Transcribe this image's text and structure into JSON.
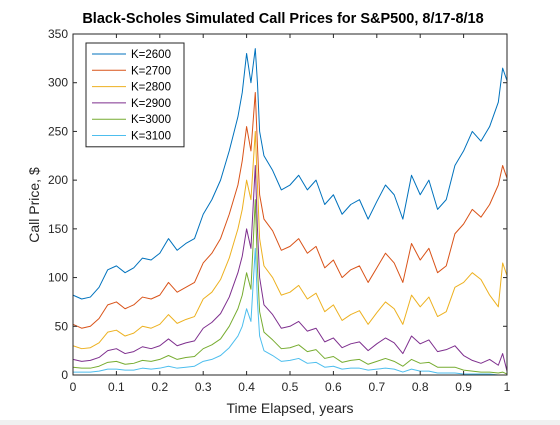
{
  "chart_data": {
    "type": "line",
    "title": "Black-Scholes Simulated Call Prices for S&P500, 8/17-8/18",
    "xlabel": "Time Elapsed, years",
    "ylabel": "Call Price, $",
    "xlim": [
      0,
      1
    ],
    "ylim": [
      0,
      350
    ],
    "xticks": [
      0,
      0.1,
      0.2,
      0.3,
      0.4,
      0.5,
      0.6,
      0.7,
      0.8,
      0.9,
      1
    ],
    "xtick_labels": [
      "0",
      "0.1",
      "0.2",
      "0.3",
      "0.4",
      "0.5",
      "0.6",
      "0.7",
      "0.8",
      "0.9",
      "1"
    ],
    "yticks": [
      0,
      50,
      100,
      150,
      200,
      250,
      300,
      350
    ],
    "ytick_labels": [
      "0",
      "50",
      "100",
      "150",
      "200",
      "250",
      "300",
      "350"
    ],
    "grid": false,
    "legend_position": "top-left",
    "series": [
      {
        "name": "K=2600",
        "color": "#0072BD",
        "x": [
          0,
          0.02,
          0.04,
          0.06,
          0.08,
          0.1,
          0.12,
          0.14,
          0.16,
          0.18,
          0.2,
          0.22,
          0.24,
          0.26,
          0.28,
          0.3,
          0.32,
          0.34,
          0.36,
          0.38,
          0.39,
          0.4,
          0.41,
          0.42,
          0.425,
          0.43,
          0.44,
          0.46,
          0.48,
          0.5,
          0.52,
          0.54,
          0.56,
          0.58,
          0.6,
          0.62,
          0.64,
          0.66,
          0.68,
          0.7,
          0.72,
          0.74,
          0.76,
          0.78,
          0.8,
          0.82,
          0.84,
          0.86,
          0.88,
          0.9,
          0.92,
          0.94,
          0.96,
          0.98,
          0.99,
          1
        ],
        "values": [
          82,
          78,
          80,
          90,
          108,
          112,
          105,
          110,
          120,
          118,
          125,
          140,
          128,
          135,
          140,
          165,
          180,
          200,
          230,
          265,
          290,
          330,
          300,
          335,
          300,
          250,
          225,
          210,
          190,
          195,
          205,
          190,
          200,
          175,
          185,
          165,
          175,
          180,
          160,
          178,
          195,
          185,
          160,
          205,
          185,
          200,
          170,
          180,
          215,
          230,
          250,
          240,
          255,
          280,
          315,
          302
        ]
      },
      {
        "name": "K=2700",
        "color": "#D95319",
        "x": [
          0,
          0.02,
          0.04,
          0.06,
          0.08,
          0.1,
          0.12,
          0.14,
          0.16,
          0.18,
          0.2,
          0.22,
          0.24,
          0.26,
          0.28,
          0.3,
          0.32,
          0.34,
          0.36,
          0.38,
          0.39,
          0.4,
          0.41,
          0.42,
          0.425,
          0.43,
          0.44,
          0.46,
          0.48,
          0.5,
          0.52,
          0.54,
          0.56,
          0.58,
          0.6,
          0.62,
          0.64,
          0.66,
          0.68,
          0.7,
          0.72,
          0.74,
          0.76,
          0.78,
          0.8,
          0.82,
          0.84,
          0.86,
          0.88,
          0.9,
          0.92,
          0.94,
          0.96,
          0.98,
          0.99,
          1
        ],
        "values": [
          52,
          48,
          50,
          58,
          72,
          75,
          68,
          72,
          80,
          78,
          82,
          95,
          85,
          90,
          95,
          115,
          125,
          140,
          165,
          195,
          220,
          255,
          230,
          290,
          235,
          185,
          160,
          148,
          128,
          132,
          140,
          125,
          132,
          110,
          118,
          100,
          108,
          112,
          95,
          110,
          125,
          115,
          95,
          135,
          118,
          130,
          105,
          112,
          145,
          155,
          170,
          162,
          175,
          195,
          215,
          202
        ]
      },
      {
        "name": "K=2800",
        "color": "#EDB120",
        "x": [
          0,
          0.02,
          0.04,
          0.06,
          0.08,
          0.1,
          0.12,
          0.14,
          0.16,
          0.18,
          0.2,
          0.22,
          0.24,
          0.26,
          0.28,
          0.3,
          0.32,
          0.34,
          0.36,
          0.38,
          0.39,
          0.4,
          0.41,
          0.42,
          0.425,
          0.43,
          0.44,
          0.46,
          0.48,
          0.5,
          0.52,
          0.54,
          0.56,
          0.58,
          0.6,
          0.62,
          0.64,
          0.66,
          0.68,
          0.7,
          0.72,
          0.74,
          0.76,
          0.78,
          0.8,
          0.82,
          0.84,
          0.86,
          0.88,
          0.9,
          0.92,
          0.94,
          0.96,
          0.98,
          0.99,
          1
        ],
        "values": [
          30,
          27,
          28,
          33,
          44,
          46,
          40,
          43,
          50,
          48,
          52,
          62,
          53,
          57,
          60,
          78,
          85,
          98,
          120,
          150,
          170,
          200,
          180,
          250,
          195,
          140,
          112,
          100,
          82,
          85,
          92,
          78,
          84,
          65,
          72,
          56,
          62,
          66,
          52,
          64,
          75,
          68,
          52,
          82,
          70,
          80,
          60,
          65,
          90,
          95,
          105,
          98,
          82,
          70,
          115,
          102
        ]
      },
      {
        "name": "K=2900",
        "color": "#7E2F8E",
        "x": [
          0,
          0.02,
          0.04,
          0.06,
          0.08,
          0.1,
          0.12,
          0.14,
          0.16,
          0.18,
          0.2,
          0.22,
          0.24,
          0.26,
          0.28,
          0.3,
          0.32,
          0.34,
          0.36,
          0.38,
          0.39,
          0.4,
          0.41,
          0.42,
          0.425,
          0.43,
          0.44,
          0.46,
          0.48,
          0.5,
          0.52,
          0.54,
          0.56,
          0.58,
          0.6,
          0.62,
          0.64,
          0.66,
          0.68,
          0.7,
          0.72,
          0.74,
          0.76,
          0.78,
          0.8,
          0.82,
          0.84,
          0.86,
          0.88,
          0.9,
          0.92,
          0.94,
          0.96,
          0.98,
          0.99,
          1
        ],
        "values": [
          16,
          14,
          15,
          18,
          25,
          27,
          22,
          24,
          29,
          27,
          30,
          37,
          30,
          33,
          35,
          48,
          54,
          63,
          80,
          105,
          122,
          150,
          130,
          215,
          150,
          100,
          72,
          62,
          48,
          50,
          55,
          45,
          48,
          34,
          38,
          28,
          32,
          34,
          25,
          32,
          38,
          33,
          22,
          40,
          32,
          36,
          24,
          26,
          30,
          20,
          15,
          12,
          16,
          10,
          22,
          4
        ]
      },
      {
        "name": "K=3000",
        "color": "#77AC30",
        "x": [
          0,
          0.02,
          0.04,
          0.06,
          0.08,
          0.1,
          0.12,
          0.14,
          0.16,
          0.18,
          0.2,
          0.22,
          0.24,
          0.26,
          0.28,
          0.3,
          0.32,
          0.34,
          0.36,
          0.38,
          0.39,
          0.4,
          0.41,
          0.42,
          0.425,
          0.43,
          0.44,
          0.46,
          0.48,
          0.5,
          0.52,
          0.54,
          0.56,
          0.58,
          0.6,
          0.62,
          0.64,
          0.66,
          0.68,
          0.7,
          0.72,
          0.74,
          0.76,
          0.78,
          0.8,
          0.82,
          0.84,
          0.86,
          0.88,
          0.9,
          0.92,
          0.94,
          0.96,
          0.98,
          0.99,
          1
        ],
        "values": [
          8,
          7,
          7,
          9,
          13,
          14,
          11,
          12,
          15,
          14,
          16,
          20,
          16,
          18,
          19,
          27,
          31,
          37,
          50,
          68,
          82,
          105,
          88,
          180,
          110,
          65,
          44,
          36,
          27,
          28,
          31,
          24,
          26,
          17,
          19,
          13,
          15,
          16,
          11,
          14,
          17,
          14,
          9,
          16,
          12,
          13,
          8,
          8,
          8,
          5,
          4,
          3,
          3,
          2,
          3,
          1
        ]
      },
      {
        "name": "K=3100",
        "color": "#4DBEEE",
        "x": [
          0,
          0.02,
          0.04,
          0.06,
          0.08,
          0.1,
          0.12,
          0.14,
          0.16,
          0.18,
          0.2,
          0.22,
          0.24,
          0.26,
          0.28,
          0.3,
          0.32,
          0.34,
          0.36,
          0.38,
          0.39,
          0.4,
          0.41,
          0.42,
          0.425,
          0.43,
          0.44,
          0.46,
          0.48,
          0.5,
          0.52,
          0.54,
          0.56,
          0.58,
          0.6,
          0.62,
          0.64,
          0.66,
          0.68,
          0.7,
          0.72,
          0.74,
          0.76,
          0.78,
          0.8,
          0.82,
          0.84,
          0.86,
          0.88,
          0.9,
          0.92,
          0.94,
          0.96,
          0.98,
          0.99,
          1
        ],
        "values": [
          3,
          3,
          3,
          4,
          6,
          6,
          5,
          5,
          7,
          6,
          7,
          9,
          7,
          8,
          9,
          14,
          16,
          20,
          28,
          40,
          50,
          68,
          55,
          130,
          75,
          40,
          25,
          20,
          14,
          15,
          17,
          12,
          13,
          8,
          9,
          6,
          7,
          7,
          5,
          6,
          7,
          6,
          3,
          6,
          4,
          4,
          2,
          2,
          2,
          1,
          1,
          1,
          1,
          0,
          0,
          0
        ]
      }
    ]
  }
}
